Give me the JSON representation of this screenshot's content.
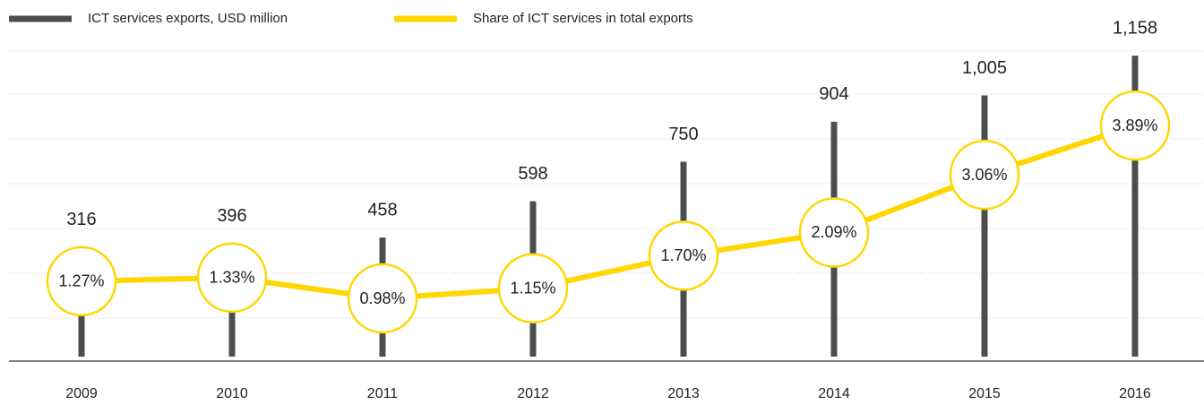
{
  "chart_data": {
    "type": "bar-line",
    "categories": [
      "2009",
      "2010",
      "2011",
      "2012",
      "2013",
      "2014",
      "2015",
      "2016"
    ],
    "series": [
      {
        "name": "ICT services exports, USD million",
        "color": "#4d4d4d",
        "type": "bar",
        "values": [
          316,
          396,
          458,
          598,
          750,
          904,
          1005,
          1158
        ],
        "value_labels": [
          "316",
          "396",
          "458",
          "598",
          "750",
          "904",
          "1,005",
          "1,158"
        ]
      },
      {
        "name": "Share of ICT services in total exports",
        "color": "#ffd600",
        "type": "line",
        "axis": "y2",
        "values": [
          1.27,
          1.33,
          0.98,
          1.15,
          1.7,
          2.09,
          3.06,
          3.89
        ],
        "value_labels": [
          "1.27%",
          "1.33%",
          "0.98%",
          "1.15%",
          "1.70%",
          "2.09%",
          "3.06%",
          "3.89%"
        ]
      }
    ],
    "ylim": [
      0,
      1200
    ],
    "y2lim": [
      0,
      5.25
    ]
  }
}
